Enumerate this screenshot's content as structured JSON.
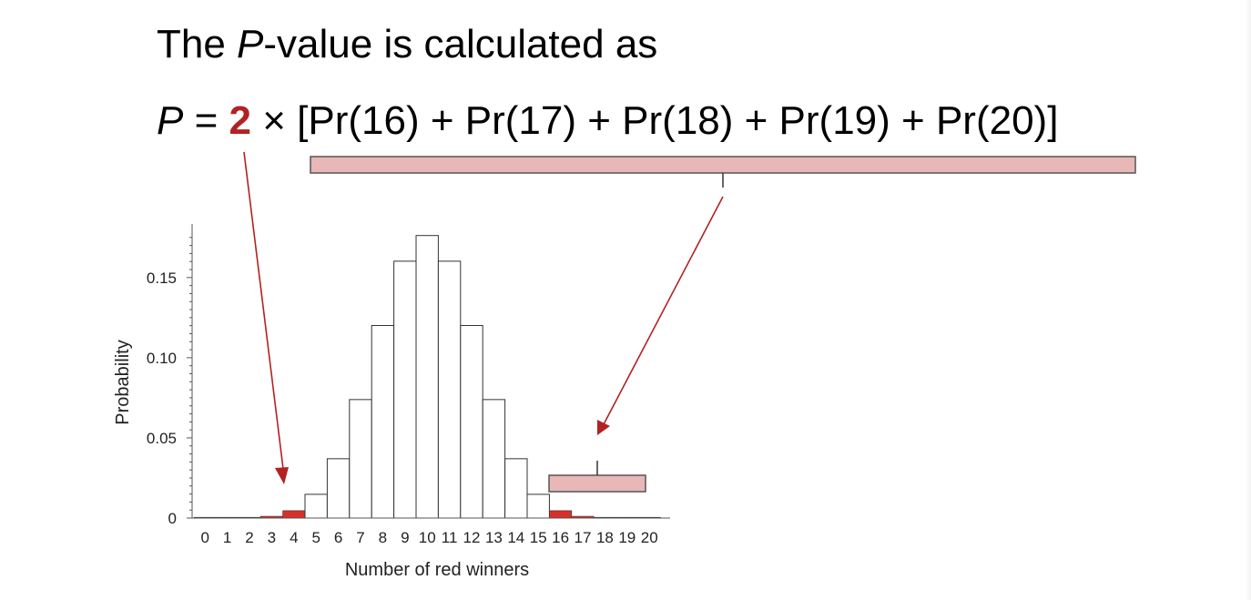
{
  "heading": {
    "prefix": "The ",
    "italic": "P",
    "suffix": "-value is calculated as"
  },
  "formula": {
    "p_symbol": "P",
    "equals": " = ",
    "factor": "2",
    "times": " × ",
    "sum": "[Pr(16) + Pr(17) + Pr(18) + Pr(19) + Pr(20)]"
  },
  "colors": {
    "tail_bar": "#d9302a",
    "bracket_fill": "#e8b7b7",
    "arrow": "#b22222",
    "bar_fill": "#ffffff",
    "bar_stroke": "#333333"
  },
  "chart_data": {
    "type": "bar",
    "xlabel": "Number of red winners",
    "ylabel": "Probability",
    "categories": [
      "0",
      "1",
      "2",
      "3",
      "4",
      "5",
      "6",
      "7",
      "8",
      "9",
      "10",
      "11",
      "12",
      "13",
      "14",
      "15",
      "16",
      "17",
      "18",
      "19",
      "20"
    ],
    "values": [
      1e-06,
      2e-05,
      0.0002,
      0.0011,
      0.0046,
      0.0148,
      0.037,
      0.0739,
      0.1201,
      0.1602,
      0.1762,
      0.1602,
      0.1201,
      0.0739,
      0.037,
      0.0148,
      0.0046,
      0.0011,
      0.0002,
      2e-05,
      1e-06
    ],
    "highlighted": [
      0,
      1,
      2,
      3,
      4,
      16,
      17,
      18,
      19,
      20
    ],
    "yticks": [
      "0",
      "0.05",
      "0.10",
      "0.15"
    ],
    "ytick_values": [
      0,
      0.05,
      0.1,
      0.15
    ],
    "ylim": [
      0,
      0.18
    ]
  }
}
